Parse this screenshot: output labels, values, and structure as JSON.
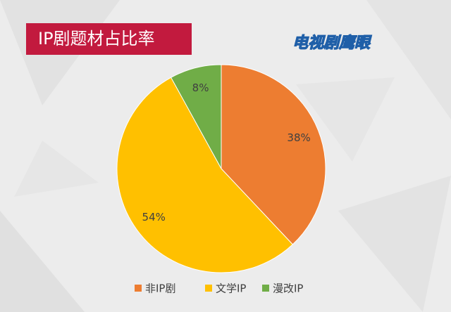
{
  "chart_data": {
    "type": "pie",
    "title": "IP剧题材占比率",
    "logo": "电视剧鹰眼",
    "categories": [
      "非IP剧",
      "文学IP",
      "漫改IP"
    ],
    "values": [
      38,
      54,
      8
    ],
    "value_labels": [
      "38%",
      "54%",
      "8%"
    ],
    "colors": [
      "#ED7D31",
      "#FFC000",
      "#70AD47"
    ],
    "legend": "bottom"
  }
}
